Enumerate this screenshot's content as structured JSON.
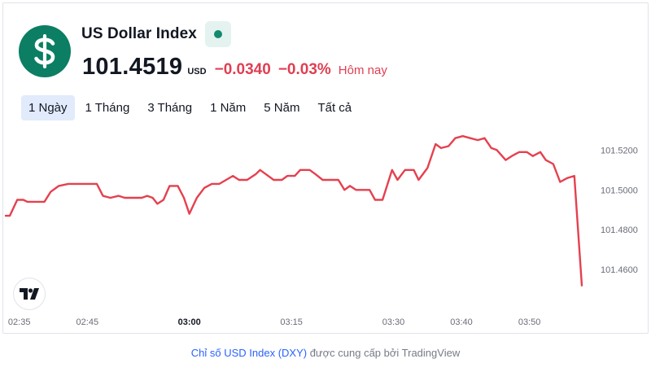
{
  "header": {
    "title": "US Dollar Index",
    "price": "101.4519",
    "currency": "USD",
    "change": "−0.0340",
    "change_percent": "−0.03%",
    "period_label": "Hôm nay",
    "status": "market-open-dot",
    "logo_glyph": "$"
  },
  "tabs": [
    {
      "label": "1 Ngày",
      "active": true
    },
    {
      "label": "1 Tháng",
      "active": false
    },
    {
      "label": "3 Tháng",
      "active": false
    },
    {
      "label": "1 Năm",
      "active": false
    },
    {
      "label": "5 Năm",
      "active": false
    },
    {
      "label": "Tất cả",
      "active": false
    }
  ],
  "colors": {
    "line": "#e5404f",
    "logo_bg": "#0b7e63",
    "negative": "#e03e52",
    "active_tab_bg": "#e1ebfb",
    "link": "#2962ff"
  },
  "chart_data": {
    "type": "line",
    "x_axis": "time",
    "x_start": "02:33",
    "y_axis_position": "right",
    "y_ticks": [
      "101.5200",
      "101.5000",
      "101.4800",
      "101.4600"
    ],
    "x_ticks": [
      {
        "label": "02:35",
        "minutes": 2,
        "bold": false
      },
      {
        "label": "02:45",
        "minutes": 12,
        "bold": false
      },
      {
        "label": "03:00",
        "minutes": 27,
        "bold": true
      },
      {
        "label": "03:15",
        "minutes": 42,
        "bold": false
      },
      {
        "label": "03:30",
        "minutes": 57,
        "bold": false
      },
      {
        "label": "03:40",
        "minutes": 67,
        "bold": false
      },
      {
        "label": "03:50",
        "minutes": 77,
        "bold": false
      }
    ],
    "ylim": [
      101.44,
      101.532
    ],
    "xlim_minutes": [
      0,
      84.7
    ],
    "series": [
      {
        "values": [
          [
            0.0,
            101.487
          ],
          [
            0.6,
            101.487
          ],
          [
            1.7,
            101.495
          ],
          [
            2.6,
            101.495
          ],
          [
            3.2,
            101.494
          ],
          [
            5.7,
            101.494
          ],
          [
            6.6,
            101.499
          ],
          [
            7.8,
            101.502
          ],
          [
            9.2,
            101.503
          ],
          [
            10.3,
            101.503
          ],
          [
            13.4,
            101.503
          ],
          [
            14.3,
            101.497
          ],
          [
            15.4,
            101.496
          ],
          [
            16.6,
            101.497
          ],
          [
            17.5,
            101.496
          ],
          [
            20.0,
            101.496
          ],
          [
            20.8,
            101.497
          ],
          [
            21.6,
            101.496
          ],
          [
            22.3,
            101.493
          ],
          [
            23.2,
            101.495
          ],
          [
            24.1,
            101.502
          ],
          [
            25.3,
            101.502
          ],
          [
            26.2,
            101.496
          ],
          [
            27.0,
            101.488
          ],
          [
            28.1,
            101.496
          ],
          [
            29.2,
            101.501
          ],
          [
            30.3,
            101.503
          ],
          [
            31.4,
            101.503
          ],
          [
            33.4,
            101.507
          ],
          [
            34.3,
            101.505
          ],
          [
            35.5,
            101.505
          ],
          [
            36.8,
            101.508
          ],
          [
            37.4,
            101.51
          ],
          [
            38.2,
            101.508
          ],
          [
            39.4,
            101.505
          ],
          [
            40.6,
            101.505
          ],
          [
            41.4,
            101.507
          ],
          [
            42.5,
            101.507
          ],
          [
            43.3,
            101.51
          ],
          [
            44.7,
            101.51
          ],
          [
            45.5,
            101.508
          ],
          [
            46.6,
            101.505
          ],
          [
            48.9,
            101.505
          ],
          [
            49.8,
            101.5
          ],
          [
            50.6,
            101.502
          ],
          [
            51.5,
            101.5
          ],
          [
            53.5,
            101.5
          ],
          [
            54.3,
            101.495
          ],
          [
            55.4,
            101.495
          ],
          [
            56.8,
            101.51
          ],
          [
            57.6,
            101.505
          ],
          [
            58.7,
            101.51
          ],
          [
            60.0,
            101.51
          ],
          [
            60.7,
            101.505
          ],
          [
            62.0,
            101.511
          ],
          [
            63.2,
            101.523
          ],
          [
            64.0,
            101.521
          ],
          [
            65.1,
            101.522
          ],
          [
            66.1,
            101.526
          ],
          [
            67.2,
            101.527
          ],
          [
            68.3,
            101.526
          ],
          [
            69.4,
            101.525
          ],
          [
            70.4,
            101.526
          ],
          [
            71.4,
            101.521
          ],
          [
            72.2,
            101.52
          ],
          [
            73.5,
            101.515
          ],
          [
            74.4,
            101.517
          ],
          [
            75.5,
            101.519
          ],
          [
            76.6,
            101.519
          ],
          [
            77.5,
            101.517
          ],
          [
            78.6,
            101.519
          ],
          [
            79.4,
            101.515
          ],
          [
            80.5,
            101.513
          ],
          [
            81.5,
            101.504
          ],
          [
            82.6,
            101.506
          ],
          [
            83.6,
            101.507
          ],
          [
            84.7,
            101.452
          ]
        ]
      }
    ]
  },
  "footer": {
    "link_text": "Chỉ số USD Index (DXY)",
    "suffix_text": " được cung cấp bởi TradingView"
  }
}
